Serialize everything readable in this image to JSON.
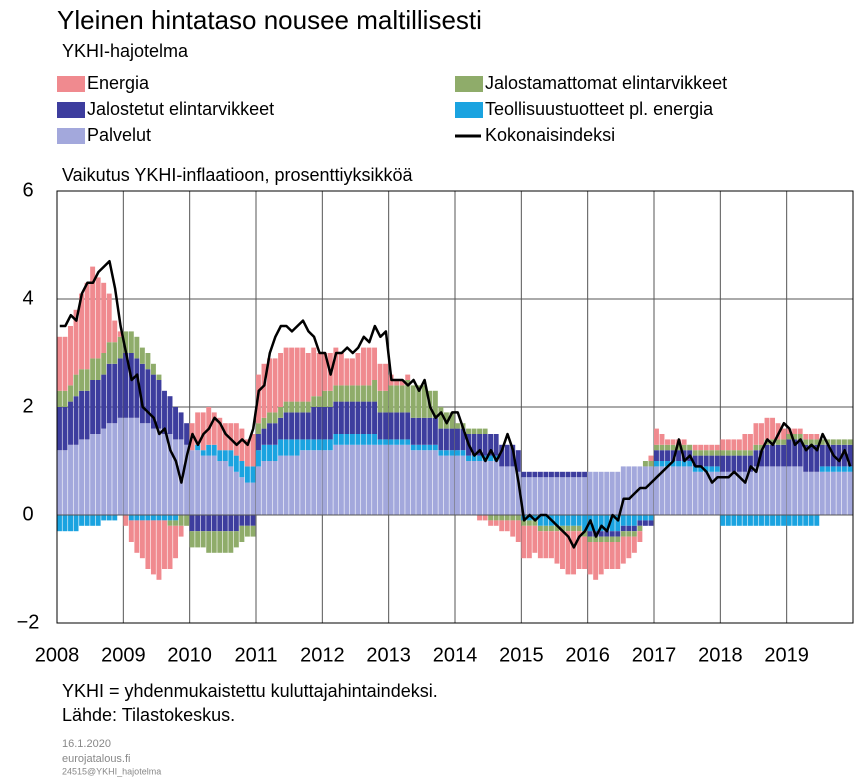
{
  "chart_data": {
    "type": "bar",
    "title": "Yleinen hintataso nousee maltillisesti",
    "subtitle": "YKHI-hajotelma",
    "y_label": "Vaikutus YKHI-inflaatioon, prosenttiyksikköä",
    "stacked": true,
    "grid": true,
    "categories": [
      "2008",
      null,
      null,
      null,
      null,
      null,
      null,
      null,
      null,
      null,
      null,
      null,
      "2009",
      null,
      null,
      null,
      null,
      null,
      null,
      null,
      null,
      null,
      null,
      null,
      "2010",
      null,
      null,
      null,
      null,
      null,
      null,
      null,
      null,
      null,
      null,
      null,
      "2011",
      null,
      null,
      null,
      null,
      null,
      null,
      null,
      null,
      null,
      null,
      null,
      "2012",
      null,
      null,
      null,
      null,
      null,
      null,
      null,
      null,
      null,
      null,
      null,
      "2013",
      null,
      null,
      null,
      null,
      null,
      null,
      null,
      null,
      null,
      null,
      null,
      "2014",
      null,
      null,
      null,
      null,
      null,
      null,
      null,
      null,
      null,
      null,
      null,
      "2015",
      null,
      null,
      null,
      null,
      null,
      null,
      null,
      null,
      null,
      null,
      null,
      "2016",
      null,
      null,
      null,
      null,
      null,
      null,
      null,
      null,
      null,
      null,
      null,
      "2017",
      null,
      null,
      null,
      null,
      null,
      null,
      null,
      null,
      null,
      null,
      null,
      "2018",
      null,
      null,
      null,
      null,
      null,
      null,
      null,
      null,
      null,
      null,
      null,
      "2019",
      null,
      null,
      null,
      null,
      null,
      null,
      null,
      null,
      null,
      null,
      null
    ],
    "ylim": [
      -2,
      6
    ],
    "yticks": [
      {
        "value": -2,
        "label": "−2"
      },
      0,
      2,
      4,
      6
    ],
    "series": [
      {
        "name": "Energia",
        "color": "#f08a8f",
        "values": [
          1.0,
          1.0,
          1.1,
          1.2,
          1.4,
          1.6,
          1.7,
          1.5,
          1.3,
          0.9,
          0.4,
          0.1,
          -0.2,
          -0.4,
          -0.6,
          -0.7,
          -0.9,
          -1.0,
          -1.1,
          -0.9,
          -0.8,
          -0.6,
          -0.2,
          0.0,
          0.5,
          0.6,
          0.7,
          0.7,
          0.6,
          0.6,
          0.5,
          0.5,
          0.6,
          0.6,
          0.5,
          0.6,
          0.9,
          1.0,
          1.0,
          1.0,
          1.0,
          1.0,
          1.0,
          1.0,
          1.0,
          0.9,
          0.9,
          0.8,
          0.7,
          0.7,
          0.7,
          0.6,
          0.5,
          0.5,
          0.6,
          0.7,
          0.7,
          0.6,
          0.5,
          0.5,
          0.2,
          0.1,
          0.1,
          0.1,
          0.0,
          0.0,
          0.0,
          0.0,
          0.0,
          0.0,
          0.0,
          0.0,
          0.0,
          0.0,
          0.0,
          0.0,
          -0.1,
          -0.1,
          -0.1,
          -0.1,
          -0.2,
          -0.2,
          -0.3,
          -0.4,
          -0.6,
          -0.6,
          -0.5,
          -0.5,
          -0.5,
          -0.5,
          -0.6,
          -0.7,
          -0.8,
          -0.8,
          -0.7,
          -0.6,
          -0.6,
          -0.7,
          -0.6,
          -0.5,
          -0.5,
          -0.5,
          -0.5,
          -0.4,
          -0.3,
          -0.2,
          0.0,
          0.1,
          0.3,
          0.2,
          0.1,
          0.1,
          0.1,
          0.1,
          0.0,
          0.1,
          0.1,
          0.1,
          0.1,
          0.1,
          0.2,
          0.2,
          0.2,
          0.2,
          0.3,
          0.3,
          0.4,
          0.4,
          0.4,
          0.4,
          0.3,
          0.2,
          0.1,
          0.1,
          0.1,
          0.1,
          0.1,
          0.1,
          0.0,
          0.0,
          0.0,
          0.0,
          0.0,
          0.0
        ]
      },
      {
        "name": "Jalostamattomat elintarvikkeet",
        "color": "#8fac6a",
        "values": [
          0.3,
          0.3,
          0.3,
          0.4,
          0.4,
          0.4,
          0.4,
          0.4,
          0.4,
          0.4,
          0.4,
          0.4,
          0.4,
          0.4,
          0.4,
          0.3,
          0.3,
          0.2,
          0.1,
          0.0,
          -0.1,
          -0.1,
          -0.2,
          -0.2,
          -0.3,
          -0.3,
          -0.3,
          -0.4,
          -0.4,
          -0.4,
          -0.4,
          -0.4,
          -0.3,
          -0.3,
          -0.2,
          -0.2,
          0.2,
          0.2,
          0.2,
          0.2,
          0.2,
          0.2,
          0.2,
          0.2,
          0.2,
          0.2,
          0.2,
          0.2,
          0.3,
          0.3,
          0.3,
          0.3,
          0.3,
          0.3,
          0.3,
          0.3,
          0.3,
          0.4,
          0.4,
          0.4,
          0.5,
          0.5,
          0.5,
          0.6,
          0.6,
          0.6,
          0.6,
          0.5,
          0.5,
          0.4,
          0.3,
          0.3,
          0.1,
          0.1,
          0.1,
          0.1,
          0.1,
          0.1,
          -0.1,
          -0.1,
          -0.1,
          -0.1,
          -0.1,
          -0.1,
          -0.1,
          -0.1,
          -0.1,
          -0.1,
          -0.1,
          -0.1,
          -0.1,
          -0.1,
          -0.1,
          -0.1,
          -0.1,
          -0.1,
          -0.1,
          -0.1,
          -0.1,
          -0.1,
          -0.1,
          -0.1,
          -0.1,
          -0.1,
          -0.1,
          -0.1,
          0.1,
          0.1,
          0.1,
          0.1,
          0.1,
          0.1,
          0.1,
          0.1,
          0.1,
          0.1,
          0.1,
          0.1,
          0.1,
          0.1,
          0.1,
          0.1,
          0.1,
          0.1,
          0.1,
          0.1,
          0.1,
          0.1,
          0.1,
          0.1,
          0.1,
          0.1,
          0.1,
          0.1,
          0.1,
          0.1,
          0.1,
          0.1,
          0.1,
          0.1,
          0.1,
          0.1,
          0.1,
          0.1
        ]
      },
      {
        "name": "Jalostetut elintarvikkeet",
        "color": "#3d3d9e",
        "values": [
          0.8,
          0.8,
          0.8,
          0.9,
          0.9,
          0.9,
          1.0,
          1.0,
          1.0,
          1.1,
          1.1,
          1.1,
          1.2,
          1.2,
          1.1,
          1.1,
          1.0,
          1.0,
          0.9,
          0.8,
          0.7,
          0.6,
          0.5,
          0.4,
          -0.3,
          -0.3,
          -0.3,
          -0.3,
          -0.3,
          -0.3,
          -0.3,
          -0.3,
          -0.3,
          -0.2,
          -0.2,
          -0.2,
          0.3,
          0.3,
          0.4,
          0.4,
          0.4,
          0.5,
          0.5,
          0.5,
          0.5,
          0.5,
          0.6,
          0.6,
          0.6,
          0.6,
          0.6,
          0.6,
          0.6,
          0.6,
          0.6,
          0.6,
          0.6,
          0.6,
          0.5,
          0.5,
          0.5,
          0.5,
          0.5,
          0.5,
          0.5,
          0.5,
          0.5,
          0.5,
          0.5,
          0.4,
          0.4,
          0.4,
          0.4,
          0.4,
          0.4,
          0.4,
          0.4,
          0.4,
          0.4,
          0.4,
          0.4,
          0.4,
          0.4,
          0.4,
          0.1,
          0.1,
          0.1,
          0.1,
          0.1,
          0.1,
          0.1,
          0.1,
          0.1,
          0.1,
          0.1,
          0.1,
          -0.1,
          -0.1,
          -0.1,
          -0.1,
          -0.1,
          -0.1,
          -0.1,
          -0.1,
          -0.1,
          -0.1,
          -0.1,
          -0.1,
          0.2,
          0.2,
          0.2,
          0.2,
          0.2,
          0.2,
          0.2,
          0.2,
          0.2,
          0.2,
          0.2,
          0.2,
          0.3,
          0.3,
          0.3,
          0.3,
          0.3,
          0.3,
          0.3,
          0.3,
          0.4,
          0.4,
          0.4,
          0.4,
          0.5,
          0.5,
          0.5,
          0.5,
          0.5,
          0.5,
          0.4,
          0.4,
          0.4,
          0.4,
          0.4,
          0.4
        ]
      },
      {
        "name": "Teollisuustuotteet pl. energia",
        "color": "#1aa3e0",
        "values": [
          -0.3,
          -0.3,
          -0.3,
          -0.3,
          -0.2,
          -0.2,
          -0.2,
          -0.2,
          -0.1,
          -0.1,
          -0.1,
          0.0,
          0.0,
          -0.1,
          -0.1,
          -0.1,
          -0.1,
          -0.1,
          -0.1,
          -0.1,
          -0.1,
          -0.1,
          0.0,
          0.0,
          0.0,
          0.1,
          0.1,
          0.2,
          0.2,
          0.2,
          0.2,
          0.3,
          0.3,
          0.3,
          0.3,
          0.3,
          0.3,
          0.3,
          0.3,
          0.3,
          0.3,
          0.3,
          0.3,
          0.3,
          0.2,
          0.2,
          0.2,
          0.2,
          0.2,
          0.2,
          0.2,
          0.2,
          0.2,
          0.2,
          0.2,
          0.2,
          0.2,
          0.2,
          0.1,
          0.1,
          0.1,
          0.1,
          0.1,
          0.1,
          0.1,
          0.1,
          0.1,
          0.1,
          0.1,
          0.1,
          0.1,
          0.1,
          0.1,
          0.1,
          0.1,
          0.1,
          0.1,
          0.1,
          0.1,
          0.1,
          0.0,
          0.0,
          0.0,
          0.0,
          -0.1,
          -0.1,
          -0.1,
          -0.2,
          -0.2,
          -0.2,
          -0.2,
          -0.2,
          -0.2,
          -0.2,
          -0.2,
          -0.3,
          -0.3,
          -0.3,
          -0.3,
          -0.3,
          -0.3,
          -0.3,
          -0.2,
          -0.2,
          -0.2,
          -0.1,
          -0.1,
          -0.1,
          0.1,
          0.1,
          0.1,
          0.1,
          0.1,
          0.1,
          0.1,
          0.1,
          0.1,
          0.1,
          0.1,
          0.1,
          -0.2,
          -0.2,
          -0.2,
          -0.2,
          -0.2,
          -0.2,
          -0.2,
          -0.2,
          -0.2,
          -0.2,
          -0.2,
          -0.2,
          -0.2,
          -0.2,
          -0.2,
          -0.2,
          -0.2,
          -0.2,
          0.1,
          0.1,
          0.1,
          0.1,
          0.1,
          0.1
        ]
      },
      {
        "name": "Palvelut",
        "color": "#a3a8dc",
        "values": [
          1.2,
          1.2,
          1.3,
          1.3,
          1.4,
          1.4,
          1.5,
          1.5,
          1.6,
          1.7,
          1.7,
          1.8,
          1.8,
          1.8,
          1.8,
          1.7,
          1.7,
          1.6,
          1.6,
          1.5,
          1.5,
          1.4,
          1.4,
          1.3,
          1.2,
          1.2,
          1.1,
          1.1,
          1.1,
          1.0,
          1.0,
          0.9,
          0.8,
          0.7,
          0.6,
          0.6,
          0.9,
          1.0,
          1.0,
          1.0,
          1.1,
          1.1,
          1.1,
          1.1,
          1.2,
          1.2,
          1.2,
          1.2,
          1.2,
          1.2,
          1.3,
          1.3,
          1.3,
          1.3,
          1.3,
          1.3,
          1.3,
          1.3,
          1.3,
          1.3,
          1.3,
          1.3,
          1.3,
          1.3,
          1.2,
          1.2,
          1.2,
          1.2,
          1.2,
          1.1,
          1.1,
          1.1,
          1.1,
          1.1,
          1.0,
          1.0,
          1.0,
          1.0,
          1.0,
          1.0,
          0.9,
          0.9,
          0.9,
          0.8,
          0.7,
          0.7,
          0.7,
          0.7,
          0.7,
          0.7,
          0.7,
          0.7,
          0.7,
          0.7,
          0.7,
          0.7,
          0.8,
          0.8,
          0.8,
          0.8,
          0.8,
          0.8,
          0.9,
          0.9,
          0.9,
          0.9,
          0.9,
          0.9,
          0.9,
          0.9,
          0.9,
          0.9,
          0.9,
          0.9,
          0.9,
          0.8,
          0.8,
          0.8,
          0.8,
          0.8,
          0.8,
          0.8,
          0.8,
          0.8,
          0.8,
          0.8,
          0.9,
          0.9,
          0.9,
          0.9,
          0.9,
          0.9,
          0.9,
          0.9,
          0.9,
          0.8,
          0.8,
          0.8,
          0.8,
          0.8,
          0.8,
          0.8,
          0.8,
          0.8
        ]
      },
      {
        "name": "Kokonaisindeksi",
        "type": "line",
        "color": "#000000",
        "values": [
          3.5,
          3.5,
          3.7,
          3.6,
          4.1,
          4.3,
          4.3,
          4.5,
          4.6,
          4.7,
          4.2,
          3.5,
          3.0,
          2.5,
          2.6,
          2.0,
          1.9,
          1.8,
          1.5,
          1.6,
          1.2,
          1.0,
          0.6,
          1.1,
          1.5,
          1.3,
          1.5,
          1.6,
          1.8,
          1.7,
          1.5,
          1.4,
          1.3,
          1.4,
          1.3,
          1.6,
          2.3,
          2.4,
          3.0,
          3.3,
          3.5,
          3.5,
          3.4,
          3.5,
          3.6,
          3.4,
          3.3,
          3.0,
          3.0,
          2.6,
          3.0,
          3.0,
          3.1,
          3.0,
          3.1,
          3.3,
          3.2,
          3.5,
          3.3,
          3.4,
          2.5,
          2.5,
          2.5,
          2.4,
          2.5,
          2.3,
          2.5,
          2.0,
          1.8,
          1.9,
          1.7,
          1.9,
          1.9,
          1.6,
          1.3,
          1.1,
          1.2,
          1.0,
          1.2,
          1.0,
          1.2,
          1.5,
          1.2,
          0.6,
          -0.1,
          0.0,
          -0.1,
          0.0,
          0.0,
          -0.1,
          -0.2,
          -0.3,
          -0.4,
          -0.6,
          -0.4,
          -0.3,
          -0.1,
          -0.4,
          -0.2,
          -0.3,
          0.0,
          -0.1,
          0.3,
          0.3,
          0.4,
          0.5,
          0.5,
          0.6,
          0.7,
          0.8,
          0.9,
          1.0,
          1.4,
          1.0,
          1.1,
          0.9,
          0.9,
          0.8,
          0.6,
          0.7,
          0.7,
          0.7,
          0.8,
          0.7,
          0.6,
          0.9,
          0.8,
          1.2,
          1.4,
          1.3,
          1.5,
          1.7,
          1.6,
          1.3,
          1.4,
          1.2,
          1.3,
          1.2,
          1.5,
          1.3,
          1.1,
          1.0,
          1.2,
          0.9
        ]
      }
    ]
  },
  "notes": [
    "YKHI = yhdenmukaistettu kuluttajahintaindeksi.",
    "Lähde: Tilastokeskus."
  ],
  "footer": [
    "16.1.2020",
    "eurojatalous.fi",
    "24515@YKHI_hajotelma"
  ]
}
